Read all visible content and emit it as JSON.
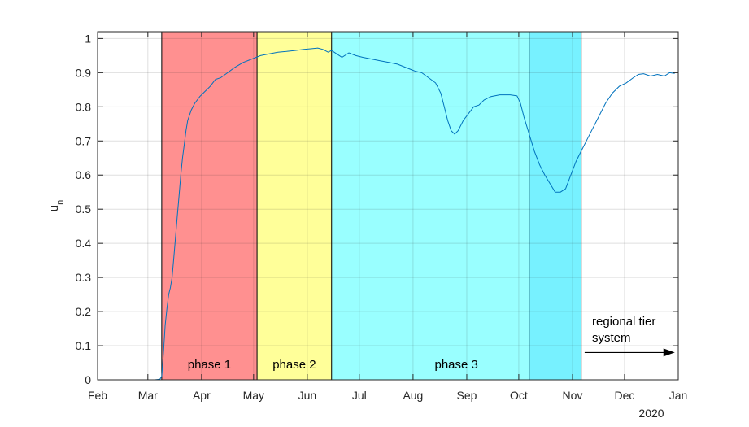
{
  "chart_data": {
    "type": "line",
    "ylabel": "u",
    "ylabel_subscript": "n",
    "year_label": "2020",
    "xlim": [
      "2020-02-01",
      "2021-01-01"
    ],
    "ylim": [
      0,
      1.02
    ],
    "grid": true,
    "x_ticks": [
      {
        "date": "2020-02-01",
        "label": "Feb"
      },
      {
        "date": "2020-03-01",
        "label": "Mar"
      },
      {
        "date": "2020-04-01",
        "label": "Apr"
      },
      {
        "date": "2020-05-01",
        "label": "May"
      },
      {
        "date": "2020-06-01",
        "label": "Jun"
      },
      {
        "date": "2020-07-01",
        "label": "Jul"
      },
      {
        "date": "2020-08-01",
        "label": "Aug"
      },
      {
        "date": "2020-09-01",
        "label": "Sep"
      },
      {
        "date": "2020-10-01",
        "label": "Oct"
      },
      {
        "date": "2020-11-01",
        "label": "Nov"
      },
      {
        "date": "2020-12-01",
        "label": "Dec"
      },
      {
        "date": "2021-01-01",
        "label": "Jan"
      }
    ],
    "y_ticks": [
      {
        "value": 0,
        "label": "0"
      },
      {
        "value": 0.1,
        "label": "0.1"
      },
      {
        "value": 0.2,
        "label": "0.2"
      },
      {
        "value": 0.3,
        "label": "0.3"
      },
      {
        "value": 0.4,
        "label": "0.4"
      },
      {
        "value": 0.5,
        "label": "0.5"
      },
      {
        "value": 0.6,
        "label": "0.6"
      },
      {
        "value": 0.7,
        "label": "0.7"
      },
      {
        "value": 0.8,
        "label": "0.8"
      },
      {
        "value": 0.9,
        "label": "0.9"
      },
      {
        "value": 1,
        "label": "1"
      }
    ],
    "regions": [
      {
        "label": "phase 1",
        "start": "2020-03-09",
        "end": "2020-05-03",
        "color": "#ff9090"
      },
      {
        "label": "phase 2",
        "start": "2020-05-03",
        "end": "2020-06-15",
        "color": "#ffff99"
      },
      {
        "label": "phase 3",
        "start": "2020-06-15",
        "end": "2020-11-06",
        "color": "#99ffff"
      }
    ],
    "overlay_region": {
      "start": "2020-10-07",
      "end": "2020-11-06",
      "color": "#22ccff",
      "opacity": 0.28
    },
    "vlines": [
      "2020-03-09",
      "2020-05-03",
      "2020-06-15",
      "2020-10-07",
      "2020-11-06"
    ],
    "annotation": {
      "lines": [
        "regional tier",
        "system"
      ],
      "arrow_from": "2020-11-08",
      "arrow_to": "2020-12-30",
      "arrow_y": 0.08
    },
    "series": [
      {
        "color": "#0072bd",
        "points": [
          [
            "2020-02-24",
            0.0
          ],
          [
            "2020-03-01",
            0.0
          ],
          [
            "2020-03-05",
            0.0
          ],
          [
            "2020-03-08",
            0.002
          ],
          [
            "2020-03-09",
            0.01
          ],
          [
            "2020-03-10",
            0.08
          ],
          [
            "2020-03-11",
            0.16
          ],
          [
            "2020-03-12",
            0.21
          ],
          [
            "2020-03-13",
            0.25
          ],
          [
            "2020-03-14",
            0.27
          ],
          [
            "2020-03-15",
            0.3
          ],
          [
            "2020-03-16",
            0.36
          ],
          [
            "2020-03-17",
            0.42
          ],
          [
            "2020-03-18",
            0.48
          ],
          [
            "2020-03-19",
            0.54
          ],
          [
            "2020-03-20",
            0.6
          ],
          [
            "2020-03-21",
            0.65
          ],
          [
            "2020-03-22",
            0.69
          ],
          [
            "2020-03-23",
            0.73
          ],
          [
            "2020-03-24",
            0.76
          ],
          [
            "2020-03-26",
            0.79
          ],
          [
            "2020-03-28",
            0.81
          ],
          [
            "2020-03-31",
            0.83
          ],
          [
            "2020-04-03",
            0.845
          ],
          [
            "2020-04-06",
            0.86
          ],
          [
            "2020-04-09",
            0.88
          ],
          [
            "2020-04-12",
            0.885
          ],
          [
            "2020-04-16",
            0.9
          ],
          [
            "2020-04-20",
            0.915
          ],
          [
            "2020-04-25",
            0.93
          ],
          [
            "2020-04-30",
            0.94
          ],
          [
            "2020-05-05",
            0.95
          ],
          [
            "2020-05-10",
            0.955
          ],
          [
            "2020-05-15",
            0.96
          ],
          [
            "2020-05-20",
            0.962
          ],
          [
            "2020-05-25",
            0.965
          ],
          [
            "2020-05-30",
            0.968
          ],
          [
            "2020-06-03",
            0.97
          ],
          [
            "2020-06-07",
            0.972
          ],
          [
            "2020-06-10",
            0.968
          ],
          [
            "2020-06-13",
            0.96
          ],
          [
            "2020-06-15",
            0.965
          ],
          [
            "2020-06-18",
            0.955
          ],
          [
            "2020-06-21",
            0.945
          ],
          [
            "2020-06-25",
            0.958
          ],
          [
            "2020-06-29",
            0.95
          ],
          [
            "2020-07-03",
            0.945
          ],
          [
            "2020-07-08",
            0.94
          ],
          [
            "2020-07-13",
            0.935
          ],
          [
            "2020-07-18",
            0.93
          ],
          [
            "2020-07-23",
            0.925
          ],
          [
            "2020-07-28",
            0.915
          ],
          [
            "2020-08-02",
            0.905
          ],
          [
            "2020-08-06",
            0.9
          ],
          [
            "2020-08-10",
            0.885
          ],
          [
            "2020-08-14",
            0.87
          ],
          [
            "2020-08-17",
            0.84
          ],
          [
            "2020-08-19",
            0.8
          ],
          [
            "2020-08-21",
            0.76
          ],
          [
            "2020-08-23",
            0.73
          ],
          [
            "2020-08-25",
            0.72
          ],
          [
            "2020-08-27",
            0.73
          ],
          [
            "2020-08-30",
            0.76
          ],
          [
            "2020-09-02",
            0.78
          ],
          [
            "2020-09-05",
            0.8
          ],
          [
            "2020-09-08",
            0.805
          ],
          [
            "2020-09-11",
            0.82
          ],
          [
            "2020-09-15",
            0.83
          ],
          [
            "2020-09-20",
            0.835
          ],
          [
            "2020-09-26",
            0.835
          ],
          [
            "2020-09-30",
            0.832
          ],
          [
            "2020-10-02",
            0.81
          ],
          [
            "2020-10-04",
            0.77
          ],
          [
            "2020-10-07",
            0.72
          ],
          [
            "2020-10-10",
            0.67
          ],
          [
            "2020-10-13",
            0.63
          ],
          [
            "2020-10-16",
            0.6
          ],
          [
            "2020-10-19",
            0.575
          ],
          [
            "2020-10-22",
            0.55
          ],
          [
            "2020-10-25",
            0.55
          ],
          [
            "2020-10-28",
            0.56
          ],
          [
            "2020-10-31",
            0.6
          ],
          [
            "2020-11-03",
            0.64
          ],
          [
            "2020-11-06",
            0.67
          ],
          [
            "2020-11-09",
            0.7
          ],
          [
            "2020-11-12",
            0.73
          ],
          [
            "2020-11-16",
            0.77
          ],
          [
            "2020-11-20",
            0.81
          ],
          [
            "2020-11-24",
            0.84
          ],
          [
            "2020-11-28",
            0.86
          ],
          [
            "2020-12-02",
            0.87
          ],
          [
            "2020-12-06",
            0.885
          ],
          [
            "2020-12-09",
            0.895
          ],
          [
            "2020-12-12",
            0.897
          ],
          [
            "2020-12-16",
            0.89
          ],
          [
            "2020-12-20",
            0.895
          ],
          [
            "2020-12-24",
            0.89
          ],
          [
            "2020-12-27",
            0.9
          ],
          [
            "2020-12-30",
            0.898
          ]
        ]
      }
    ]
  }
}
